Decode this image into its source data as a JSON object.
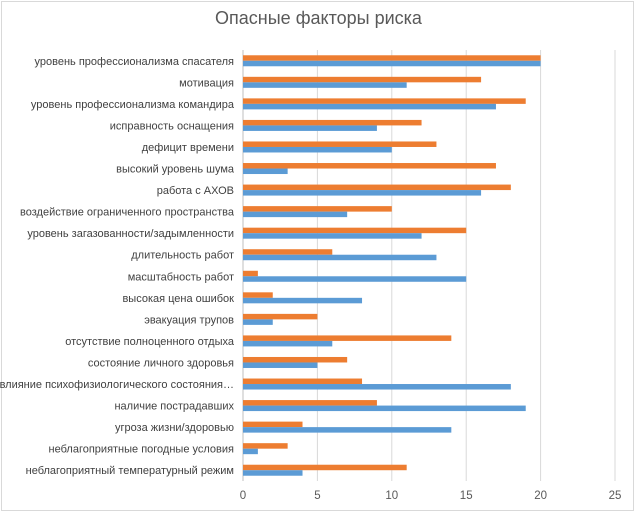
{
  "chart_data": {
    "type": "bar",
    "orientation": "horizontal",
    "title": "Опасные факторы риска",
    "xlabel": "",
    "ylabel": "",
    "xlim": [
      0,
      25
    ],
    "x_ticks": [
      "0",
      "5",
      "10",
      "15",
      "20",
      "25"
    ],
    "grid": "vertical",
    "legend": "none",
    "categories": [
      "уровень профессионализма спасателя",
      "мотивация",
      "уровень профессионализма командира",
      "исправность оснащения",
      "дефицит времени",
      "высокий уровень шума",
      "работа с АХОВ",
      "воздействие ограниченного пространства",
      "уровень загазованности/задымленности",
      "длительность работ",
      "масштабность работ",
      "высокая цена ошибок",
      "эвакуация трупов",
      "отсутствие полноценного отдыха",
      "состояние личного здоровья",
      "влияние психофизиологического состояния…",
      "наличие пострадавших",
      "угроза жизни/здоровью",
      "неблагоприятные погодные условия",
      "неблагоприятный температурный режим"
    ],
    "series": [
      {
        "color": "#ed7d31",
        "values": [
          20,
          16,
          19,
          12,
          13,
          17,
          18,
          10,
          15,
          6,
          1,
          2,
          5,
          14,
          7,
          8,
          9,
          4,
          3,
          11
        ]
      },
      {
        "color": "#5b9bd5",
        "values": [
          20,
          11,
          17,
          9,
          10,
          3,
          16,
          7,
          12,
          13,
          15,
          8,
          2,
          6,
          5,
          18,
          19,
          14,
          1,
          4
        ]
      }
    ]
  }
}
